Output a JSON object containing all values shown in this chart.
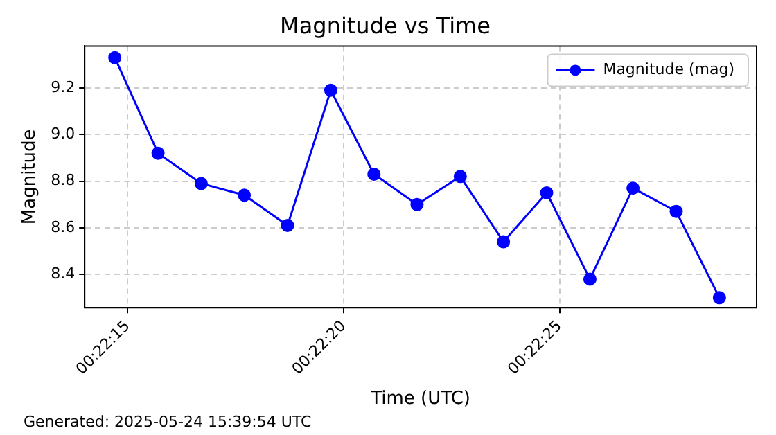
{
  "chart_data": {
    "type": "line",
    "title": "Magnitude vs Time",
    "xlabel": "Time (UTC)",
    "ylabel": "Magnitude",
    "x": [
      0.37075,
      0.371028,
      0.371306,
      0.371583,
      0.371861,
      0.372139,
      0.372417,
      0.372694,
      0.372972,
      0.37325,
      0.373528,
      0.373806,
      0.374083,
      0.374361,
      0.374639
    ],
    "series": [
      {
        "name": "Magnitude (mag)",
        "color": "#0000ff",
        "values": [
          9.33,
          8.92,
          8.79,
          8.74,
          8.61,
          9.19,
          8.83,
          8.7,
          8.82,
          8.54,
          8.75,
          8.38,
          8.77,
          8.67,
          8.3
        ]
      }
    ],
    "xlim": [
      0.370556,
      0.374878
    ],
    "xticks": [
      {
        "value": 0.370833,
        "label": "00:22:15"
      },
      {
        "value": 0.372222,
        "label": "00:22:20"
      },
      {
        "value": 0.373611,
        "label": "00:22:25"
      }
    ],
    "ylim": [
      8.257,
      9.38
    ],
    "yticks": [
      8.4,
      8.6,
      8.8,
      {
        "value": 9.0,
        "label": "9.0"
      },
      9.2
    ],
    "grid": true,
    "legend": "top right",
    "marker": "circle",
    "line_style": "solid",
    "annotations": [
      "Generated: 2025-05-24 15:39:54 UTC"
    ]
  }
}
